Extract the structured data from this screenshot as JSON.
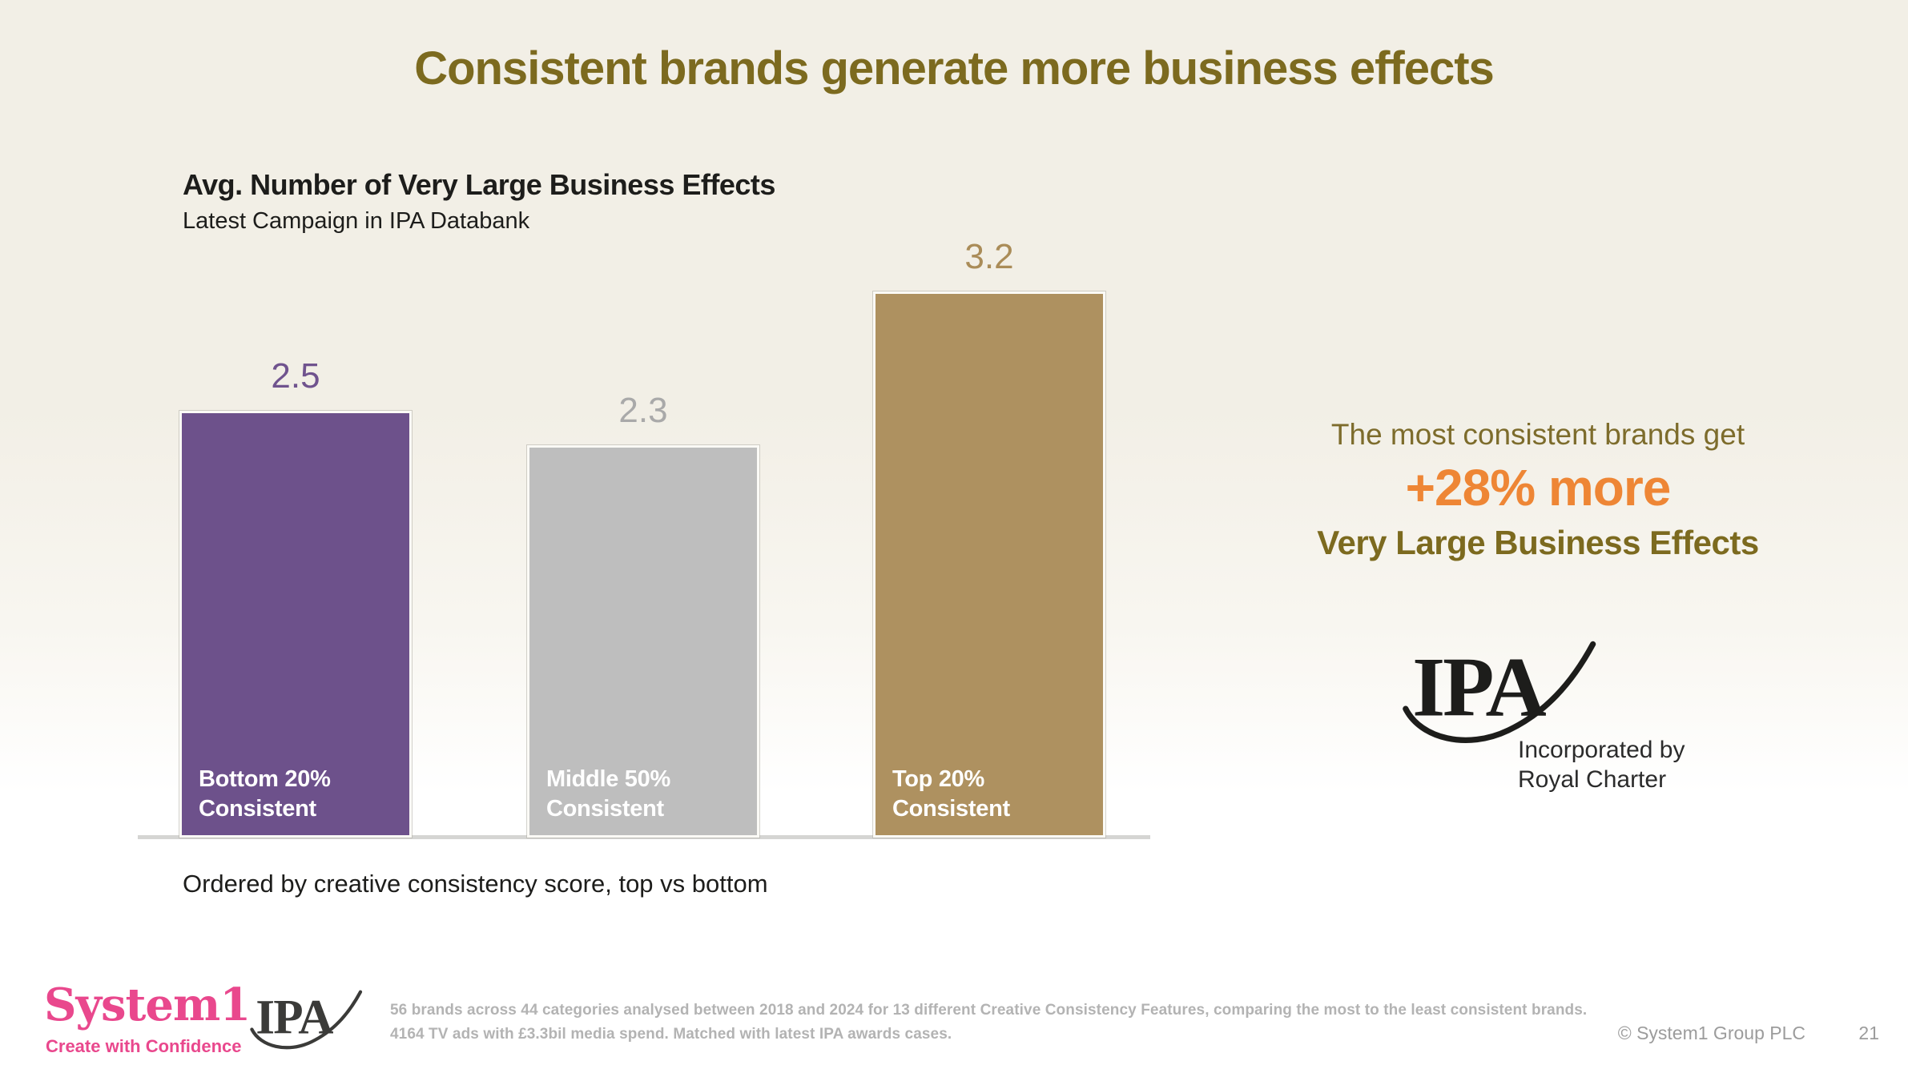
{
  "slide": {
    "title": "Consistent brands generate more business effects"
  },
  "chart": {
    "title": "Avg. Number of Very Large Business Effects",
    "subtitle": "Latest Campaign in IPA Databank",
    "caption": "Ordered by creative consistency score, top vs bottom",
    "bars": [
      {
        "label": "2.5",
        "value": 2.5,
        "name_line1": "Bottom 20%",
        "name_line2": "Consistent",
        "color": "#6d518b",
        "label_color": "#70538e"
      },
      {
        "label": "2.3",
        "value": 2.3,
        "name_line1": "Middle 50%",
        "name_line2": "Consistent",
        "color": "#bebebe",
        "label_color": "#a9a9a9"
      },
      {
        "label": "3.2",
        "value": 3.2,
        "name_line1": "Top 20%",
        "name_line2": "Consistent",
        "color": "#ae9160",
        "label_color": "#aa8c58"
      }
    ]
  },
  "chart_data": {
    "type": "bar",
    "title": "Avg. Number of Very Large Business Effects",
    "subtitle": "Latest Campaign in IPA Databank",
    "categories": [
      "Bottom 20% Consistent",
      "Middle 50% Consistent",
      "Top 20% Consistent"
    ],
    "values": [
      2.5,
      2.3,
      3.2
    ],
    "data_labels": [
      "2.5",
      "2.3",
      "3.2"
    ],
    "bar_colors": [
      "#6d518b",
      "#bebebe",
      "#ae9160"
    ],
    "ylim": [
      0,
      3.4
    ],
    "grid": false,
    "legend": false,
    "caption": "Ordered by creative consistency score, top vs bottom"
  },
  "callout": {
    "line1": "The most consistent brands get",
    "line2": "+28% more",
    "line3": "Very Large Business Effects"
  },
  "ipa_badge": {
    "logo_text": "IPA",
    "caption_line1": "Incorporated by",
    "caption_line2": "Royal Charter"
  },
  "footer": {
    "system1_logo": "System1",
    "system1_tagline": "Create with Confidence",
    "ipa_logo_text": "IPA",
    "footnote_line1": "56 brands across 44 categories analysed between 2018 and 2024 for 13 different Creative Consistency Features, comparing the most to the least consistent brands.",
    "footnote_line2": "4164 TV ads with £3.3bil media spend. Matched with latest IPA awards cases.",
    "copyright": "© System1 Group PLC",
    "page_number": "21"
  },
  "colors": {
    "accent_orange": "#ee8635",
    "olive": "#7c6a1f",
    "pink": "#e9488d",
    "background_top": "#f2efe6",
    "axis_line": "#d5d5d3"
  }
}
